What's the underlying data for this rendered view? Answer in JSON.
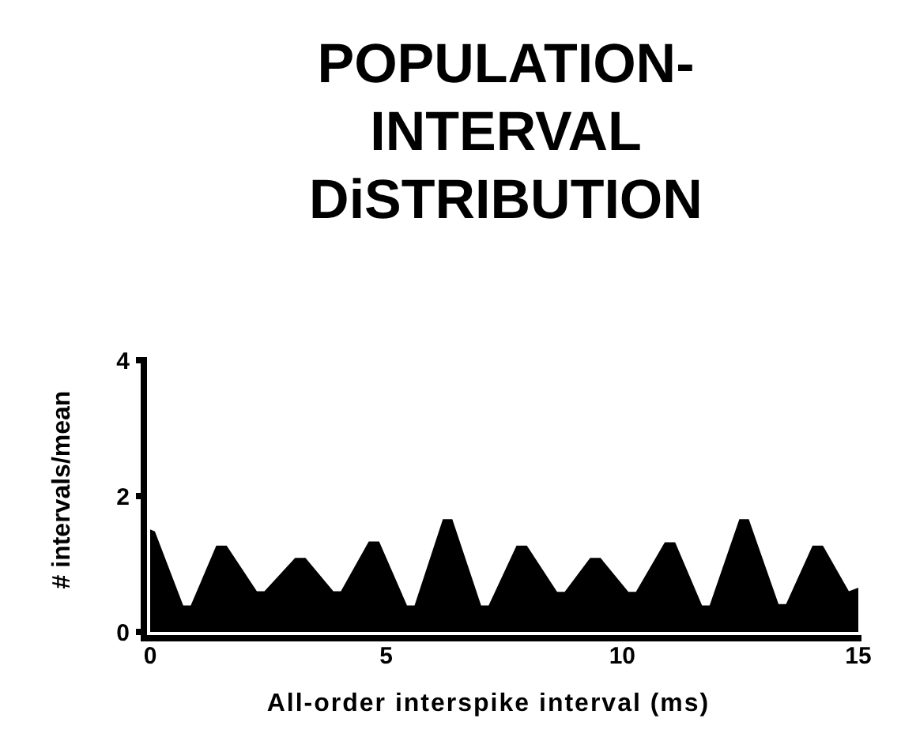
{
  "chart_data": {
    "type": "area",
    "title": "POPULATION-INTERVAL DiSTRIBUTION",
    "xlabel": "All-order interspike interval (ms)",
    "ylabel": "# intervals/mean",
    "x": [
      0,
      0.1,
      0.7,
      0.86,
      1.4,
      1.62,
      2.26,
      2.42,
      3.07,
      3.29,
      3.88,
      4.04,
      4.63,
      4.85,
      5.44,
      5.6,
      6.2,
      6.4,
      7.01,
      7.17,
      7.76,
      7.98,
      8.62,
      8.78,
      9.32,
      9.54,
      10.13,
      10.29,
      10.9,
      11.12,
      11.69,
      11.85,
      12.48,
      12.68,
      13.31,
      13.47,
      14.03,
      14.25,
      14.8,
      15
    ],
    "series": [
      {
        "color": "#000000",
        "values": [
          1.51,
          1.48,
          0.39,
          0.39,
          1.27,
          1.27,
          0.6,
          0.6,
          1.09,
          1.09,
          0.6,
          0.6,
          1.33,
          1.33,
          0.39,
          0.39,
          1.66,
          1.66,
          0.39,
          0.39,
          1.27,
          1.27,
          0.59,
          0.59,
          1.09,
          1.09,
          0.59,
          0.59,
          1.32,
          1.32,
          0.39,
          0.39,
          1.66,
          1.66,
          0.41,
          0.41,
          1.27,
          1.27,
          0.6,
          0.65
        ]
      }
    ],
    "xlim": [
      0,
      15
    ],
    "xticks": [
      0,
      5,
      10,
      15
    ],
    "ylim": [
      0,
      4
    ],
    "yticks": [
      0,
      2,
      4
    ]
  }
}
